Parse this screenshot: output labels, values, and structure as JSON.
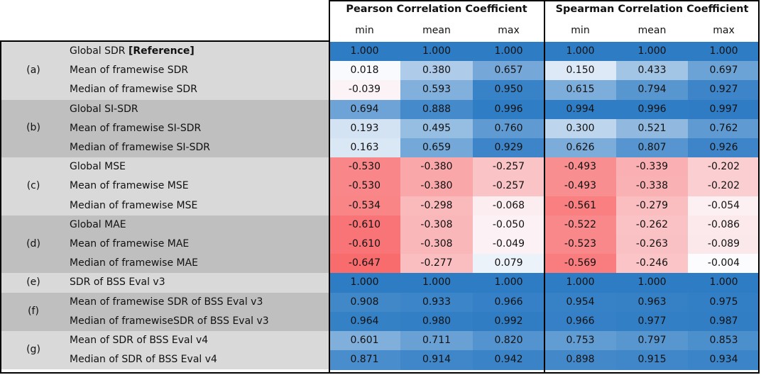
{
  "header": {
    "pearson_title": "Pearson Correlation Coefficient",
    "spearman_title": "Spearman Correlation Coefficient",
    "stats": [
      "min",
      "mean",
      "max",
      "min",
      "mean",
      "max"
    ]
  },
  "groups": [
    {
      "id": "(a)",
      "rows": [
        {
          "label": "Global SDR ",
          "suffix": "[Reference]",
          "values": [
            "1.000",
            "1.000",
            "1.000",
            "1.000",
            "1.000",
            "1.000"
          ]
        },
        {
          "label": "Mean of framewise SDR",
          "suffix": "",
          "values": [
            "0.018",
            "0.380",
            "0.657",
            "0.150",
            "0.433",
            "0.697"
          ]
        },
        {
          "label": "Median of framewise SDR",
          "suffix": "",
          "values": [
            "-0.039",
            "0.593",
            "0.950",
            "0.615",
            "0.794",
            "0.927"
          ]
        }
      ]
    },
    {
      "id": "(b)",
      "rows": [
        {
          "label": "Global SI-SDR",
          "suffix": "",
          "values": [
            "0.694",
            "0.888",
            "0.996",
            "0.994",
            "0.996",
            "0.997"
          ]
        },
        {
          "label": "Mean of framewise SI-SDR",
          "suffix": "",
          "values": [
            "0.193",
            "0.495",
            "0.760",
            "0.300",
            "0.521",
            "0.762"
          ]
        },
        {
          "label": "Median of framewise SI-SDR",
          "suffix": "",
          "values": [
            "0.163",
            "0.659",
            "0.929",
            "0.626",
            "0.807",
            "0.926"
          ]
        }
      ]
    },
    {
      "id": "(c)",
      "rows": [
        {
          "label": "Global MSE",
          "suffix": "",
          "values": [
            "-0.530",
            "-0.380",
            "-0.257",
            "-0.493",
            "-0.339",
            "-0.202"
          ]
        },
        {
          "label": "Mean of framewise MSE",
          "suffix": "",
          "values": [
            "-0.530",
            "-0.380",
            "-0.257",
            "-0.493",
            "-0.338",
            "-0.202"
          ]
        },
        {
          "label": "Median of framewise MSE",
          "suffix": "",
          "values": [
            "-0.534",
            "-0.298",
            "-0.068",
            "-0.561",
            "-0.279",
            "-0.054"
          ]
        }
      ]
    },
    {
      "id": "(d)",
      "rows": [
        {
          "label": "Global MAE",
          "suffix": "",
          "values": [
            "-0.610",
            "-0.308",
            "-0.050",
            "-0.522",
            "-0.262",
            "-0.086"
          ]
        },
        {
          "label": "Mean of framewise MAE",
          "suffix": "",
          "values": [
            "-0.610",
            "-0.308",
            "-0.049",
            "-0.523",
            "-0.263",
            "-0.089"
          ]
        },
        {
          "label": "Median of framewise MAE",
          "suffix": "",
          "values": [
            "-0.647",
            "-0.277",
            "0.079",
            "-0.569",
            "-0.246",
            "-0.004"
          ]
        }
      ]
    },
    {
      "id": "(e)",
      "rows": [
        {
          "label": "SDR of BSS Eval v3",
          "suffix": "",
          "values": [
            "1.000",
            "1.000",
            "1.000",
            "1.000",
            "1.000",
            "1.000"
          ]
        }
      ]
    },
    {
      "id": "(f)",
      "rows": [
        {
          "label": "Mean of framewise SDR of BSS Eval v3",
          "suffix": "",
          "values": [
            "0.908",
            "0.933",
            "0.966",
            "0.954",
            "0.963",
            "0.975"
          ]
        },
        {
          "label": "Median of framewiseSDR of BSS Eval v3",
          "suffix": "",
          "values": [
            "0.964",
            "0.980",
            "0.992",
            "0.966",
            "0.977",
            "0.987"
          ]
        }
      ]
    },
    {
      "id": "(g)",
      "rows": [
        {
          "label": "Mean of SDR of BSS Eval v4",
          "suffix": "",
          "values": [
            "0.601",
            "0.711",
            "0.820",
            "0.753",
            "0.797",
            "0.853"
          ]
        },
        {
          "label": "Median of SDR of BSS Eval v4",
          "suffix": "",
          "values": [
            "0.871",
            "0.914",
            "0.942",
            "0.898",
            "0.915",
            "0.934"
          ]
        }
      ]
    }
  ],
  "colors": {
    "negative": "#f8696b",
    "neutral": "#fcfcff",
    "positive": "#2e7cc4",
    "group_light": "#d9d9d9",
    "group_dark": "#bfbfbf"
  }
}
